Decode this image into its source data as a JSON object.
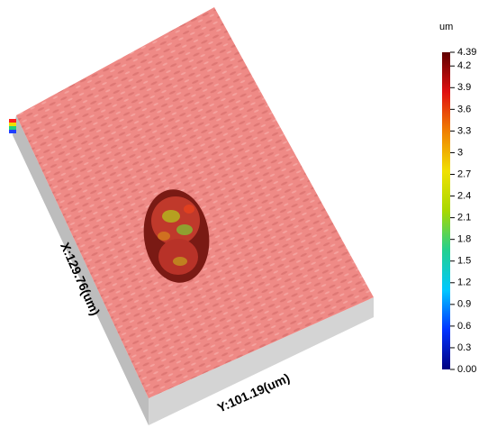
{
  "colorbar": {
    "unit": "um",
    "range": [
      0,
      4.39
    ],
    "ticks": [
      4.39,
      4.2,
      3.9,
      3.6,
      3.3,
      3,
      2.7,
      2.4,
      2.1,
      1.8,
      1.5,
      1.2,
      0.9,
      0.6,
      0.3,
      {
        "value": 0,
        "label": "0.00"
      }
    ],
    "colors": [
      "#000080",
      "#0033ff",
      "#00c8ff",
      "#22d090",
      "#a8d800",
      "#f0e000",
      "#f08000",
      "#e01010",
      "#600000"
    ]
  },
  "x_axis_label": "X:129.76(um)",
  "y_axis_label": "Y:101.19(um)"
}
